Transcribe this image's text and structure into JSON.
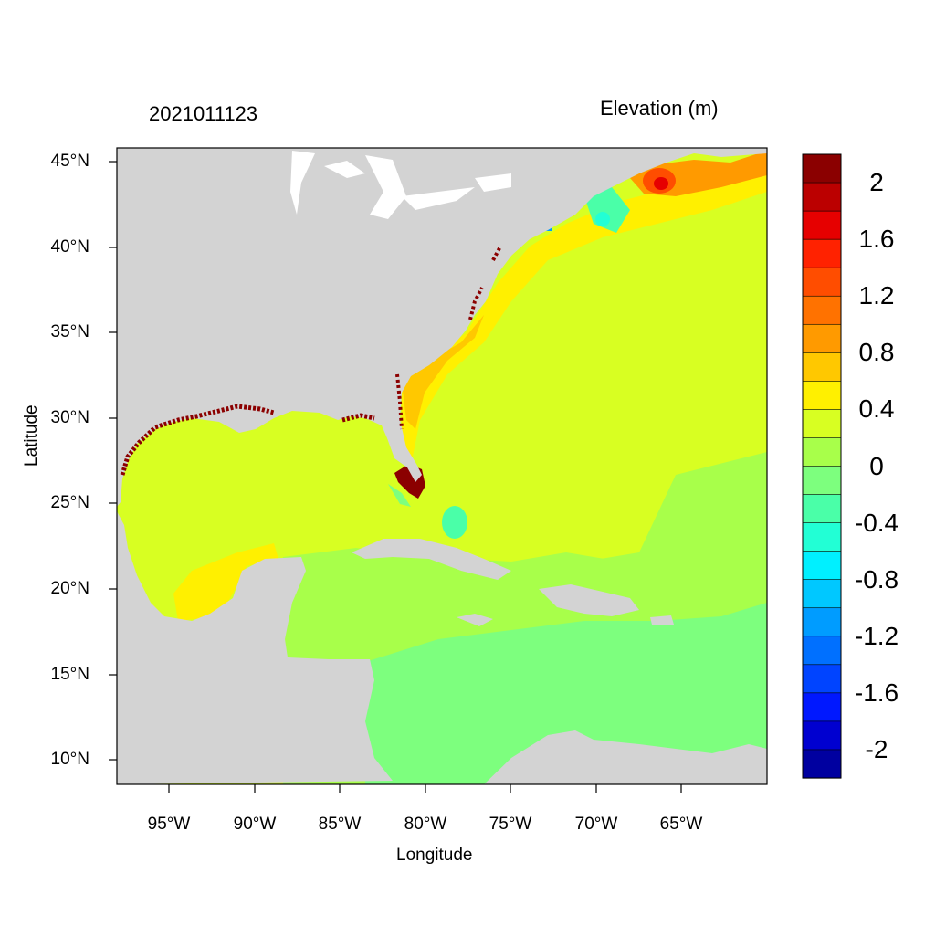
{
  "title_left": "2021011123",
  "title_right": "Elevation (m)",
  "axes": {
    "xlabel": "Longitude",
    "ylabel": "Latitude",
    "x_ticks": [
      "95°W",
      "90°W",
      "85°W",
      "80°W",
      "75°W",
      "70°W",
      "65°W"
    ],
    "y_ticks": [
      "45°N",
      "40°N",
      "35°N",
      "30°N",
      "25°N",
      "20°N",
      "15°N",
      "10°N"
    ]
  },
  "colorbar": {
    "labels": [
      "2",
      "1.6",
      "1.2",
      "0.8",
      "0.4",
      "0",
      "-0.4",
      "-0.8",
      "-1.2",
      "-1.6",
      "-2"
    ],
    "colors": [
      "#8b0000",
      "#bb0000",
      "#e60000",
      "#ff2200",
      "#ff4d00",
      "#ff7200",
      "#ff9a00",
      "#ffc800",
      "#fff000",
      "#d8ff22",
      "#a8ff4a",
      "#7dff7e",
      "#4affa8",
      "#22ffd5",
      "#00f0ff",
      "#00c8ff",
      "#009cff",
      "#0070ff",
      "#0044ff",
      "#0018ff",
      "#0000d0",
      "#0000a0"
    ]
  },
  "colors": {
    "land": "#d3d3d3",
    "ocean_base": "#d8ff22",
    "caribbean": "#a8ff4a",
    "caribbean_south": "#7dff7e",
    "surge_high": "#8b0000"
  }
}
